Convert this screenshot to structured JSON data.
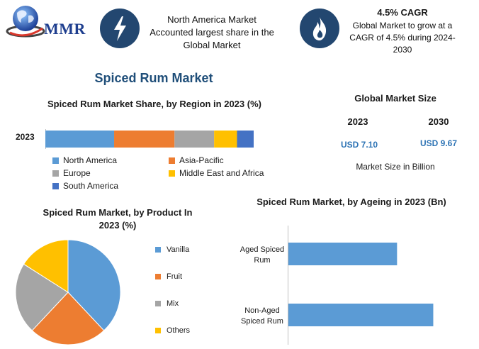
{
  "brand": {
    "logo_text": "MMR"
  },
  "header": {
    "badge1": {
      "icon": "lightning-icon",
      "text": "North America Market Accounted largest share in the Global Market"
    },
    "badge2": {
      "icon": "flame-icon",
      "title": "4.5% CAGR",
      "text": "Global Market to grow at a CAGR of 4.5% during 2024-2030"
    }
  },
  "main_title": "Spiced Rum Market",
  "market_size": {
    "title": "Global Market Size",
    "years": [
      "2023",
      "2030"
    ],
    "values": [
      "USD 7.10",
      "USD 9.67"
    ],
    "note": "Market Size in Billion"
  },
  "colors": {
    "north_america": "#5b9bd5",
    "asia_pacific": "#ed7d31",
    "europe": "#a5a5a5",
    "mea": "#ffc000",
    "south_america": "#4472c4",
    "aged": "#5b9bd5",
    "icon_bg": "#234770"
  },
  "chart_data": [
    {
      "type": "bar",
      "orientation": "horizontal-stacked",
      "title": "Spiced Rum Market Share, by Region in 2023 (%)",
      "categories": [
        "2023"
      ],
      "series": [
        {
          "name": "North America",
          "values": [
            33
          ],
          "color": "#5b9bd5"
        },
        {
          "name": "Asia-Pacific",
          "values": [
            29
          ],
          "color": "#ed7d31"
        },
        {
          "name": "Europe",
          "values": [
            19
          ],
          "color": "#a5a5a5"
        },
        {
          "name": "Middle East and Africa",
          "values": [
            11
          ],
          "color": "#ffc000"
        },
        {
          "name": "South America",
          "values": [
            8
          ],
          "color": "#4472c4"
        }
      ],
      "legend_position": "bottom"
    },
    {
      "type": "pie",
      "title": "Spiced Rum Market, by Product In 2023 (%)",
      "labels": [
        "Vanilla",
        "Fruit",
        "Mix",
        "Others"
      ],
      "values": [
        38,
        24,
        22,
        16
      ],
      "colors": [
        "#5b9bd5",
        "#ed7d31",
        "#a5a5a5",
        "#ffc000"
      ],
      "legend_position": "right"
    },
    {
      "type": "bar",
      "orientation": "horizontal",
      "title": "Spiced Rum Market, by Ageing in 2023 (Bn)",
      "categories": [
        "Aged Spiced Rum",
        "Non-Aged Spiced Rum"
      ],
      "category_lines": [
        [
          "Aged Spiced",
          "Rum"
        ],
        [
          "Non-Aged",
          "Spiced Rum"
        ]
      ],
      "values": [
        3.0,
        4.0
      ],
      "xlim": [
        0,
        4.5
      ],
      "color": "#5b9bd5",
      "grid": false
    }
  ]
}
